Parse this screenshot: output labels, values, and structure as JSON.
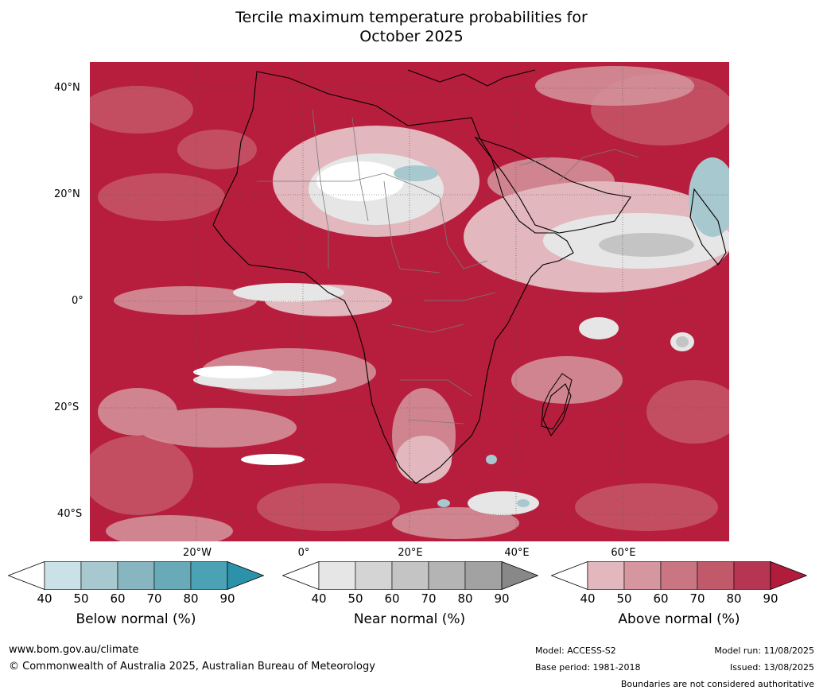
{
  "title": "Tercile maximum temperature probabilities for",
  "subtitle": "October 2025",
  "lat_labels": [
    "40°N",
    "20°N",
    "0°",
    "20°S",
    "40°S"
  ],
  "lon_labels": [
    "20°W",
    "0°",
    "20°E",
    "40°E",
    "60°E"
  ],
  "colorbars": [
    {
      "label": "Below normal (%)",
      "ticks": [
        "40",
        "50",
        "60",
        "70",
        "80",
        "90"
      ],
      "colors": [
        "#ffffff",
        "#c9e1e7",
        "#a7c8ce",
        "#87b5c0",
        "#68aab8",
        "#4aa2b4",
        "#2c92aa"
      ]
    },
    {
      "label": "Near normal (%)",
      "ticks": [
        "40",
        "50",
        "60",
        "70",
        "80",
        "90"
      ],
      "colors": [
        "#ffffff",
        "#e6e6e6",
        "#d4d4d4",
        "#c4c4c4",
        "#b4b4b4",
        "#a2a2a2",
        "#888888"
      ]
    },
    {
      "label": "Above normal (%)",
      "ticks": [
        "40",
        "50",
        "60",
        "70",
        "80",
        "90"
      ],
      "colors": [
        "#ffffff",
        "#e2b7bd",
        "#d5969f",
        "#c97682",
        "#c05a6b",
        "#b53552",
        "#b21c3c"
      ]
    }
  ],
  "footer": {
    "website": "www.bom.gov.au/climate",
    "copyright": "© Commonwealth of Australia 2025, Australian Bureau of Meteorology",
    "model": "Model: ACCESS-S2",
    "base_period": "Base period: 1981-2018",
    "model_run": "Model run: 11/08/2025",
    "issued": "Issued: 13/08/2025",
    "disclaimer": "Boundaries are not considered authoritative"
  }
}
